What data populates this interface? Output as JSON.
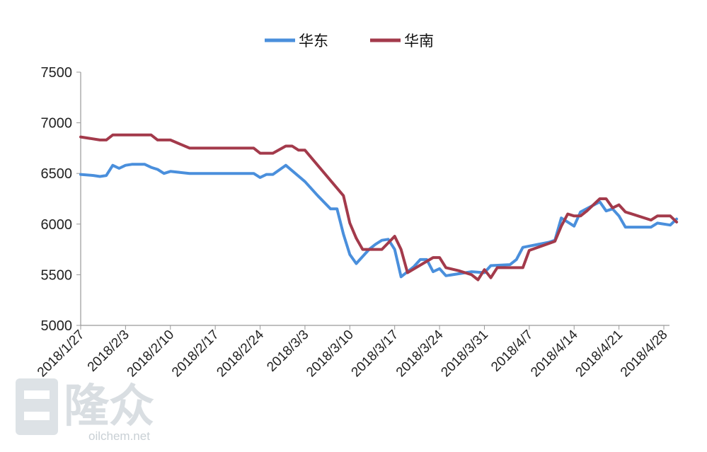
{
  "chart_data": {
    "type": "line",
    "title": "",
    "xlabel": "",
    "ylabel": "",
    "ylim": [
      5000,
      7500
    ],
    "yticks": [
      5000,
      5500,
      6000,
      6500,
      7000,
      7500
    ],
    "x_tick_labels": [
      "2018/1/27",
      "2018/2/3",
      "2018/2/10",
      "2018/2/17",
      "2018/2/24",
      "2018/3/3",
      "2018/3/10",
      "2018/3/17",
      "2018/3/24",
      "2018/3/31",
      "2018/4/7",
      "2018/4/14",
      "2018/4/21",
      "2018/4/28"
    ],
    "x_start": "2018-01-27",
    "x_end": "2018-04-28",
    "legend_position": "top-center",
    "grid": false,
    "series": [
      {
        "name": "华东",
        "color": "#4a8fdc",
        "points": [
          [
            "2018-01-27",
            6490
          ],
          [
            "2018-01-29",
            6480
          ],
          [
            "2018-01-30",
            6470
          ],
          [
            "2018-01-31",
            6480
          ],
          [
            "2018-02-01",
            6580
          ],
          [
            "2018-02-02",
            6550
          ],
          [
            "2018-02-03",
            6580
          ],
          [
            "2018-02-04",
            6590
          ],
          [
            "2018-02-06",
            6590
          ],
          [
            "2018-02-07",
            6560
          ],
          [
            "2018-02-08",
            6540
          ],
          [
            "2018-02-09",
            6500
          ],
          [
            "2018-02-10",
            6520
          ],
          [
            "2018-02-13",
            6500
          ],
          [
            "2018-02-23",
            6500
          ],
          [
            "2018-02-24",
            6460
          ],
          [
            "2018-02-25",
            6490
          ],
          [
            "2018-02-26",
            6490
          ],
          [
            "2018-02-28",
            6580
          ],
          [
            "2018-03-03",
            6420
          ],
          [
            "2018-03-05",
            6280
          ],
          [
            "2018-03-07",
            6150
          ],
          [
            "2018-03-08",
            6150
          ],
          [
            "2018-03-09",
            5900
          ],
          [
            "2018-03-10",
            5700
          ],
          [
            "2018-03-11",
            5610
          ],
          [
            "2018-03-13",
            5750
          ],
          [
            "2018-03-14",
            5800
          ],
          [
            "2018-03-15",
            5840
          ],
          [
            "2018-03-16",
            5850
          ],
          [
            "2018-03-17",
            5750
          ],
          [
            "2018-03-18",
            5480
          ],
          [
            "2018-03-20",
            5580
          ],
          [
            "2018-03-21",
            5650
          ],
          [
            "2018-03-22",
            5650
          ],
          [
            "2018-03-23",
            5530
          ],
          [
            "2018-03-24",
            5560
          ],
          [
            "2018-03-25",
            5490
          ],
          [
            "2018-03-27",
            5510
          ],
          [
            "2018-03-29",
            5530
          ],
          [
            "2018-03-31",
            5520
          ],
          [
            "2018-04-01",
            5590
          ],
          [
            "2018-04-04",
            5600
          ],
          [
            "2018-04-05",
            5650
          ],
          [
            "2018-04-06",
            5770
          ],
          [
            "2018-04-10",
            5820
          ],
          [
            "2018-04-11",
            5840
          ],
          [
            "2018-04-12",
            6060
          ],
          [
            "2018-04-13",
            6020
          ],
          [
            "2018-04-14",
            5980
          ],
          [
            "2018-04-15",
            6120
          ],
          [
            "2018-04-18",
            6220
          ],
          [
            "2018-04-19",
            6130
          ],
          [
            "2018-04-20",
            6150
          ],
          [
            "2018-04-21",
            6080
          ],
          [
            "2018-04-22",
            5970
          ],
          [
            "2018-04-26",
            5970
          ],
          [
            "2018-04-27",
            6010
          ],
          [
            "2018-04-29",
            5990
          ],
          [
            "2018-04-30",
            6050
          ]
        ]
      },
      {
        "name": "华南",
        "color": "#a33a4b",
        "points": [
          [
            "2018-01-27",
            6860
          ],
          [
            "2018-01-30",
            6830
          ],
          [
            "2018-01-31",
            6830
          ],
          [
            "2018-02-01",
            6880
          ],
          [
            "2018-02-07",
            6880
          ],
          [
            "2018-02-08",
            6830
          ],
          [
            "2018-02-10",
            6830
          ],
          [
            "2018-02-13",
            6750
          ],
          [
            "2018-02-23",
            6750
          ],
          [
            "2018-02-24",
            6700
          ],
          [
            "2018-02-26",
            6700
          ],
          [
            "2018-02-28",
            6770
          ],
          [
            "2018-03-01",
            6770
          ],
          [
            "2018-03-02",
            6730
          ],
          [
            "2018-03-03",
            6730
          ],
          [
            "2018-03-07",
            6430
          ],
          [
            "2018-03-09",
            6280
          ],
          [
            "2018-03-10",
            6010
          ],
          [
            "2018-03-11",
            5860
          ],
          [
            "2018-03-12",
            5750
          ],
          [
            "2018-03-15",
            5750
          ],
          [
            "2018-03-17",
            5880
          ],
          [
            "2018-03-18",
            5750
          ],
          [
            "2018-03-19",
            5520
          ],
          [
            "2018-03-23",
            5670
          ],
          [
            "2018-03-24",
            5670
          ],
          [
            "2018-03-25",
            5570
          ],
          [
            "2018-03-27",
            5540
          ],
          [
            "2018-03-29",
            5500
          ],
          [
            "2018-03-30",
            5450
          ],
          [
            "2018-03-31",
            5550
          ],
          [
            "2018-04-01",
            5470
          ],
          [
            "2018-04-02",
            5570
          ],
          [
            "2018-04-06",
            5570
          ],
          [
            "2018-04-07",
            5740
          ],
          [
            "2018-04-11",
            5830
          ],
          [
            "2018-04-12",
            5980
          ],
          [
            "2018-04-13",
            6100
          ],
          [
            "2018-04-14",
            6080
          ],
          [
            "2018-04-15",
            6080
          ],
          [
            "2018-04-16",
            6130
          ],
          [
            "2018-04-18",
            6250
          ],
          [
            "2018-04-19",
            6250
          ],
          [
            "2018-04-20",
            6160
          ],
          [
            "2018-04-21",
            6190
          ],
          [
            "2018-04-22",
            6120
          ],
          [
            "2018-04-26",
            6040
          ],
          [
            "2018-04-27",
            6080
          ],
          [
            "2018-04-29",
            6080
          ],
          [
            "2018-04-30",
            6020
          ]
        ]
      }
    ]
  },
  "watermark": {
    "brand": "隆众",
    "url": "oilchem.net"
  }
}
